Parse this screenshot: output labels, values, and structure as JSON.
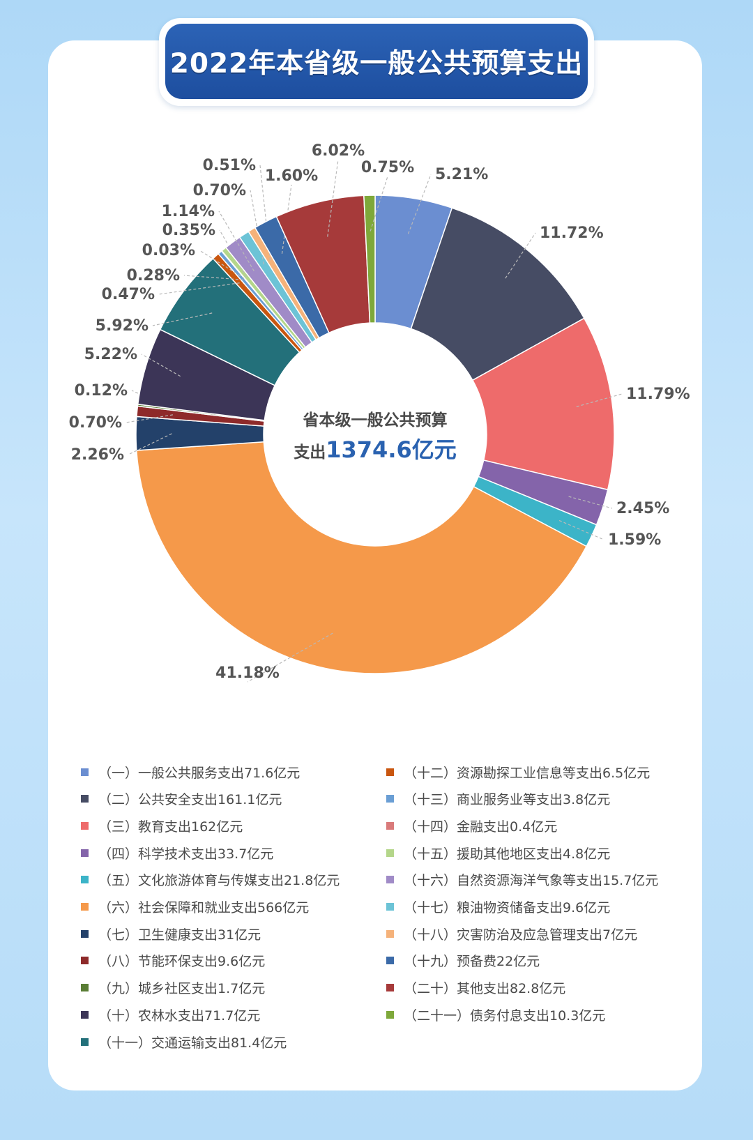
{
  "title": "2022年本省级一般公共预算支出",
  "center": {
    "line1": "省本级一般公共预算",
    "line2_prefix": "支出",
    "line2_value": "1374.6亿元"
  },
  "colors": {
    "center_value": "#2a62b0"
  },
  "chart_data": {
    "type": "pie",
    "style": "donut",
    "title": "2022年本省级一般公共预算支出",
    "total": "1374.6亿元",
    "slices": [
      {
        "label": "（一）一般公共服务支出71.6亿元",
        "value": 71.6,
        "pct": "5.21%",
        "color": "#6b8ed1"
      },
      {
        "label": "（二）公共安全支出161.1亿元",
        "value": 161.1,
        "pct": "11.72%",
        "color": "#464c64"
      },
      {
        "label": "（三）教育支出162亿元",
        "value": 162,
        "pct": "11.79%",
        "color": "#ee6b6b"
      },
      {
        "label": "（四）科学技术支出33.7亿元",
        "value": 33.7,
        "pct": "2.45%",
        "color": "#8464aa"
      },
      {
        "label": "（五）文化旅游体育与传媒支出21.8亿元",
        "value": 21.8,
        "pct": "1.59%",
        "color": "#3cb4c8"
      },
      {
        "label": "（六）社会保障和就业支出566亿元",
        "value": 566,
        "pct": "41.18%",
        "color": "#f5994a"
      },
      {
        "label": "（七）卫生健康支出31亿元",
        "value": 31,
        "pct": "2.26%",
        "color": "#23416a"
      },
      {
        "label": "（八）节能环保支出9.6亿元",
        "value": 9.6,
        "pct": "0.70%",
        "color": "#8e2a2a"
      },
      {
        "label": "（九）城乡社区支出1.7亿元",
        "value": 1.7,
        "pct": "0.12%",
        "color": "#5a7d35"
      },
      {
        "label": "（十）农林水支出71.7亿元",
        "value": 71.7,
        "pct": "5.22%",
        "color": "#3c3557"
      },
      {
        "label": "（十一）交通运输支出81.4亿元",
        "value": 81.4,
        "pct": "5.92%",
        "color": "#23707a"
      },
      {
        "label": "（十二）资源勘探工业信息等支出6.5亿元",
        "value": 6.5,
        "pct": "0.47%",
        "color": "#c9560f"
      },
      {
        "label": "（十三）商业服务业等支出3.8亿元",
        "value": 3.8,
        "pct": "0.28%",
        "color": "#6a9ed4"
      },
      {
        "label": "（十四）金融支出0.4亿元",
        "value": 0.4,
        "pct": "0.03%",
        "color": "#d97a7a"
      },
      {
        "label": "（十五）援助其他地区支出4.8亿元",
        "value": 4.8,
        "pct": "0.35%",
        "color": "#b4d68a"
      },
      {
        "label": "（十六）自然资源海洋气象等支出15.7亿元",
        "value": 15.7,
        "pct": "1.14%",
        "color": "#a08bc7"
      },
      {
        "label": "（十七）粮油物资储备支出9.6亿元",
        "value": 9.6,
        "pct": "0.70%",
        "color": "#6cc3d6"
      },
      {
        "label": "（十八）灾害防治及应急管理支出7亿元",
        "value": 7,
        "pct": "0.51%",
        "color": "#f5b27a"
      },
      {
        "label": "（十九）预备费22亿元",
        "value": 22,
        "pct": "1.60%",
        "color": "#3b6aa8"
      },
      {
        "label": "（二十）其他支出82.8亿元",
        "value": 82.8,
        "pct": "6.02%",
        "color": "#a63a3a"
      },
      {
        "label": "（二十一）债务付息支出10.3亿元",
        "value": 10.3,
        "pct": "0.75%",
        "color": "#7ea83a"
      }
    ],
    "legend_placement": "bottom"
  }
}
